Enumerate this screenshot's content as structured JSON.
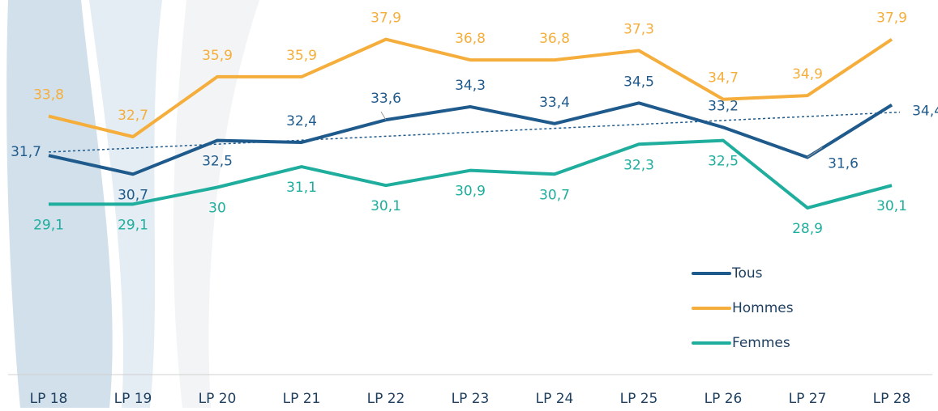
{
  "chart_data": {
    "type": "line",
    "categories": [
      "LP 18",
      "LP 19",
      "LP 20",
      "LP 21",
      "LP 22",
      "LP 23",
      "LP 24",
      "LP 25",
      "LP 26",
      "LP 27",
      "LP 28"
    ],
    "series": [
      {
        "name": "Tous",
        "color": "#1f5a8c",
        "values": [
          31.7,
          30.7,
          32.5,
          32.4,
          33.6,
          34.3,
          33.4,
          34.5,
          33.2,
          31.6,
          34.4
        ],
        "value_labels": [
          "31,7",
          "30,7",
          "32,5",
          "32,4",
          "33,6",
          "34,3",
          "33,4",
          "34,5",
          "33,2",
          "31,6",
          "34,4"
        ],
        "trendline": true
      },
      {
        "name": "Hommes",
        "color": "#f5ae3c",
        "values": [
          33.8,
          32.7,
          35.9,
          35.9,
          37.9,
          36.8,
          36.8,
          37.3,
          34.7,
          34.9,
          37.9
        ],
        "value_labels": [
          "33,8",
          "32,7",
          "35,9",
          "35,9",
          "37,9",
          "36,8",
          "36,8",
          "37,3",
          "34,7",
          "34,9",
          "37,9"
        ]
      },
      {
        "name": "Femmes",
        "color": "#1fae9e",
        "values": [
          29.1,
          29.1,
          30,
          31.1,
          30.1,
          30.9,
          30.7,
          32.3,
          32.5,
          28.9,
          30.1
        ],
        "value_labels": [
          "29,1",
          "29,1",
          "30",
          "31,1",
          "30,1",
          "30,9",
          "30,7",
          "32,3",
          "32,5",
          "28,9",
          "30,1"
        ]
      }
    ],
    "ylim": [
      20,
      40
    ],
    "legend": "lower right"
  }
}
